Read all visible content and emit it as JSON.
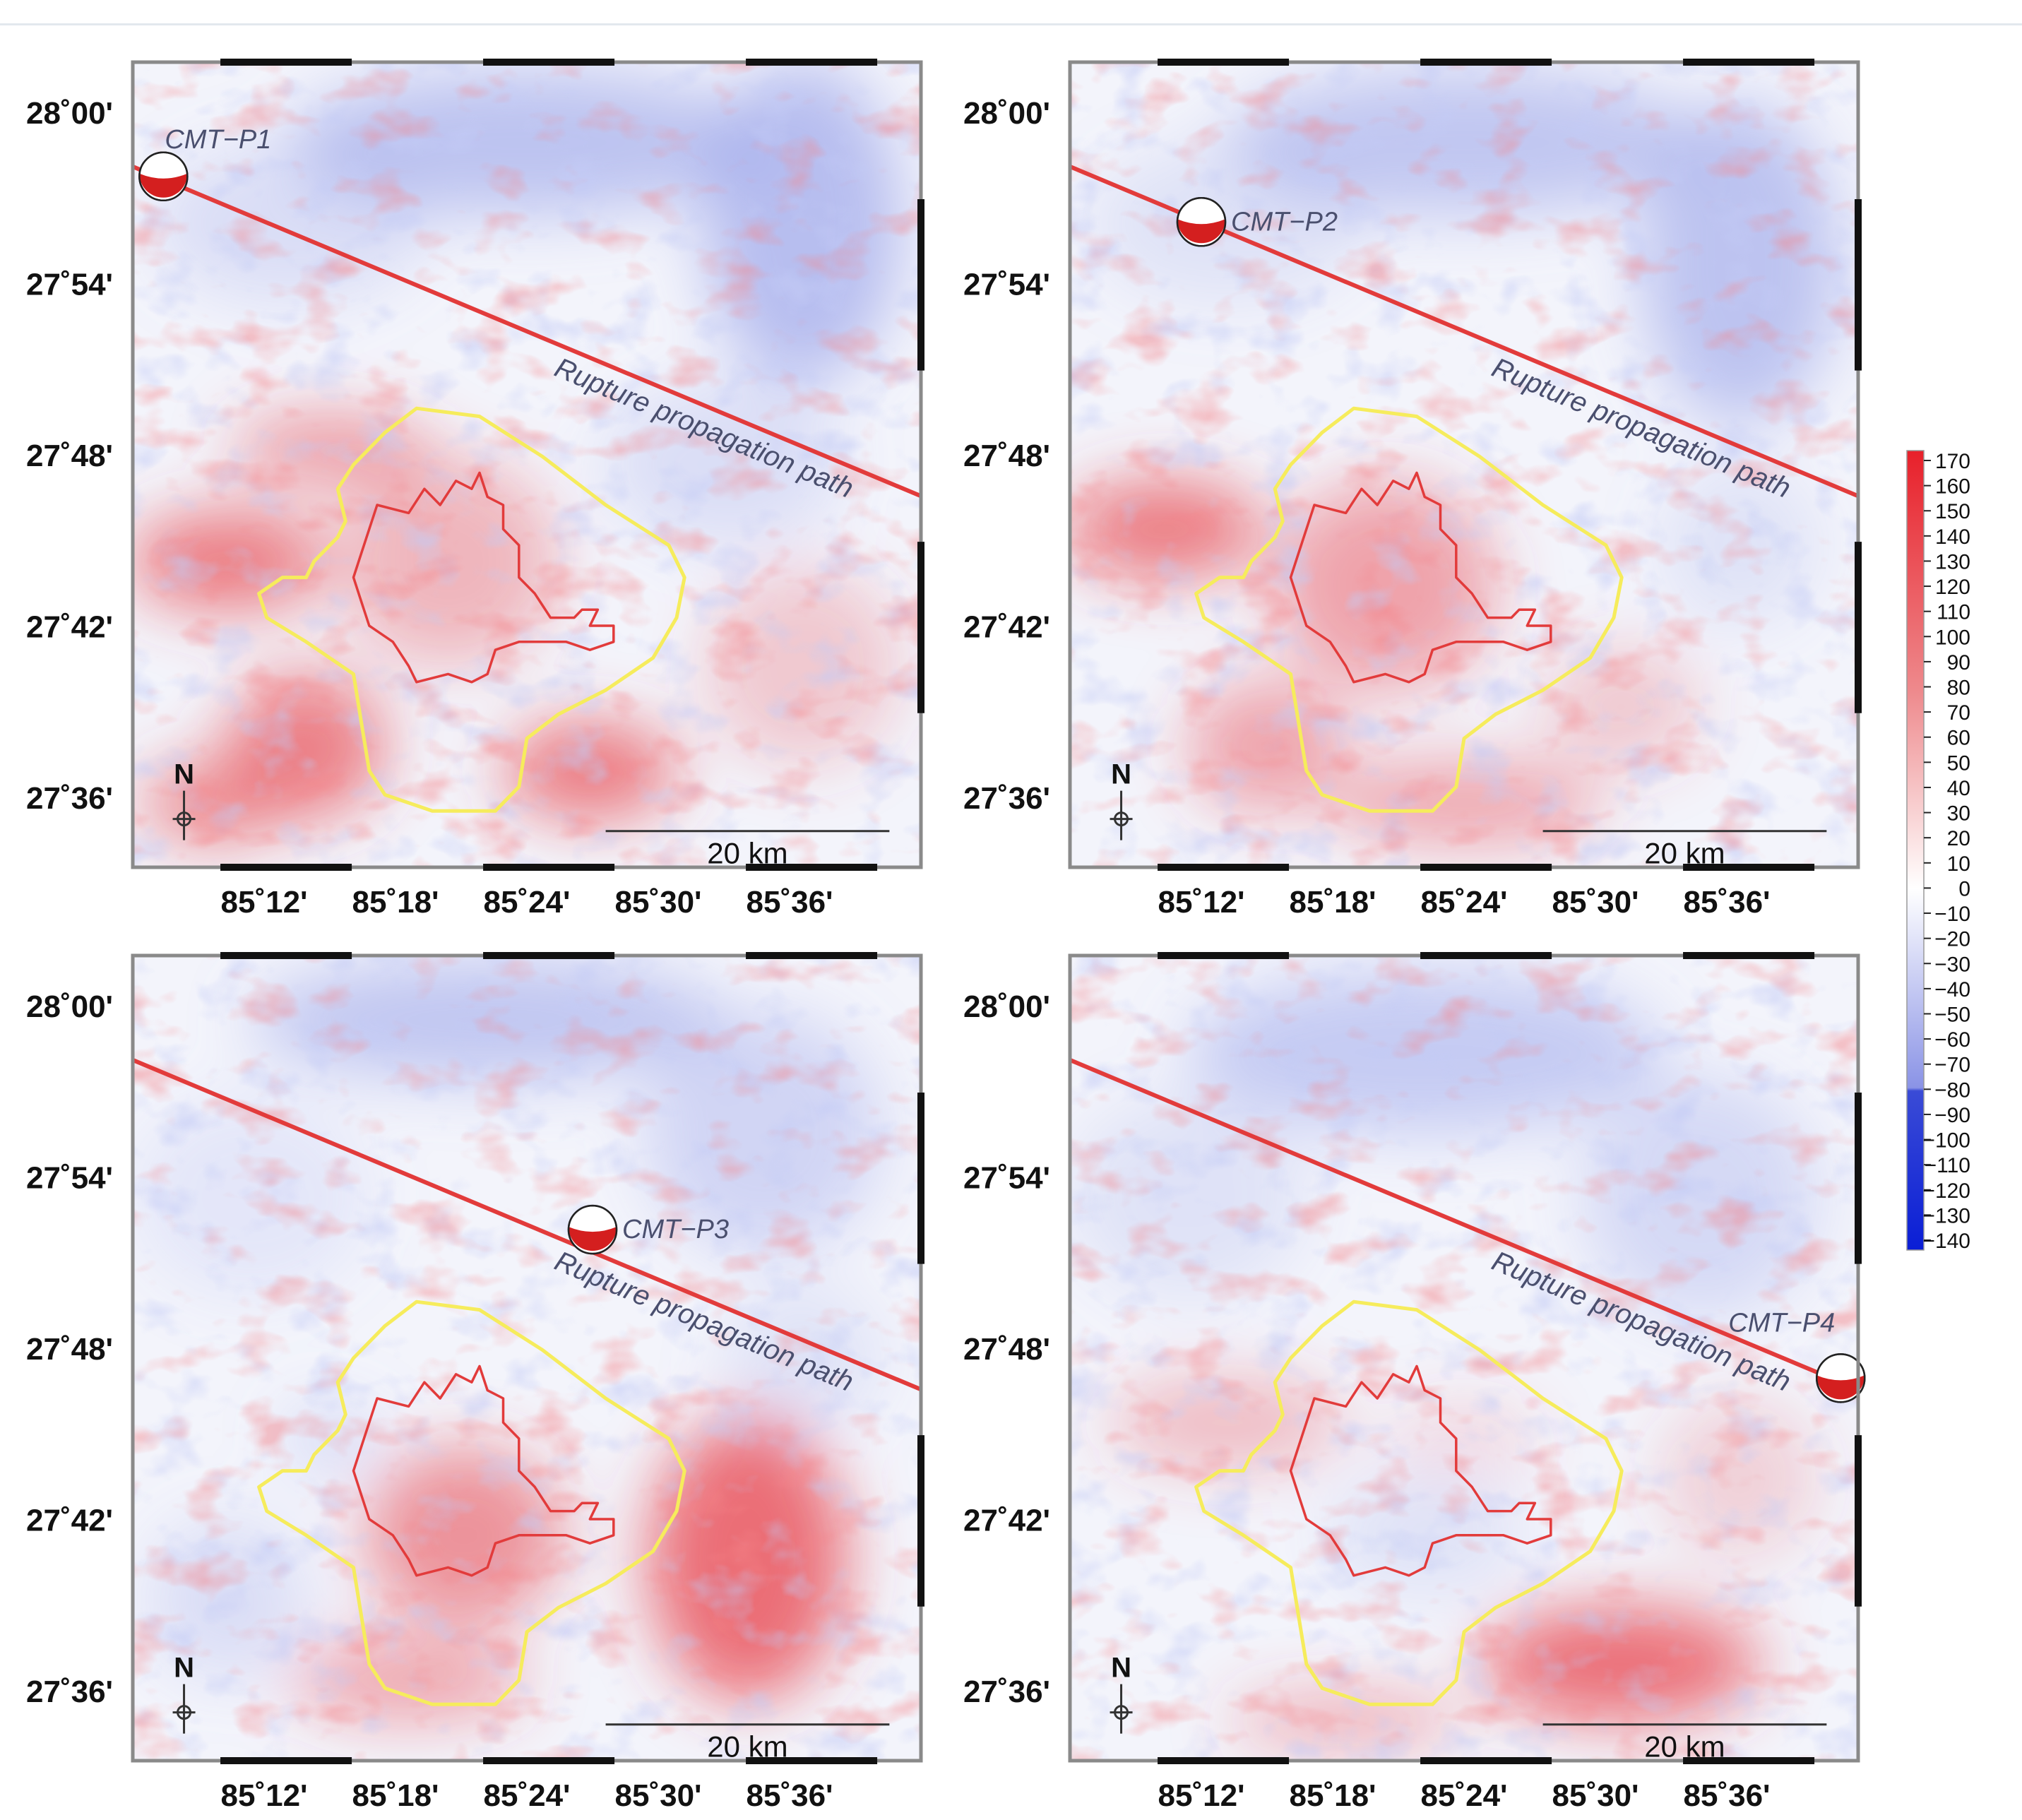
{
  "panels": [
    {
      "id": "p1",
      "cmt_label": "CMT−P1",
      "path_label": "Rupture propagation path",
      "scale_label": "20 km",
      "north_label": "N",
      "fault": {
        "start": [
          85.0867,
          27.9733
        ],
        "end": [
          85.7,
          27.7767
        ]
      },
      "cmt_position": [
        85.1233,
        27.9633
      ],
      "cmt_label_anchor": "right-above"
    },
    {
      "id": "p2",
      "cmt_label": "CMT−P2",
      "path_label": "Rupture propagation path",
      "scale_label": "20 km",
      "north_label": "N",
      "fault": {
        "start": [
          85.0867,
          27.9733
        ],
        "end": [
          85.7,
          27.7767
        ]
      },
      "cmt_position": [
        85.2,
        27.9367
      ],
      "cmt_label_anchor": "right"
    },
    {
      "id": "p3",
      "cmt_label": "CMT−P3",
      "path_label": "Rupture propagation path",
      "scale_label": "20 km",
      "north_label": "N",
      "fault": {
        "start": [
          85.0867,
          27.9733
        ],
        "end": [
          85.7,
          27.7767
        ]
      },
      "cmt_position": [
        85.45,
        27.87
      ],
      "cmt_label_anchor": "right"
    },
    {
      "id": "p4",
      "cmt_label": "CMT−P4",
      "path_label": "Rupture propagation path",
      "scale_label": "20 km",
      "north_label": "N",
      "fault": {
        "start": [
          85.0867,
          27.9733
        ],
        "end": [
          85.7,
          27.7767
        ]
      },
      "cmt_position": [
        85.6867,
        27.7833
      ],
      "cmt_label_anchor": "above-left"
    }
  ],
  "axes": {
    "lon_ticks": [
      "85˚12'",
      "85˚18'",
      "85˚24'",
      "85˚30'",
      "85˚36'"
    ],
    "lon_values": [
      85.2,
      85.3,
      85.4,
      85.5,
      85.6
    ],
    "lat_ticks": [
      "28˚00'",
      "27˚54'",
      "27˚48'",
      "27˚42'",
      "27˚36'"
    ],
    "lat_values": [
      28.0,
      27.9,
      27.8,
      27.7,
      27.6
    ],
    "lon_range": [
      85.1,
      85.7
    ],
    "lat_range": [
      27.56,
      28.03
    ]
  },
  "colorbar": {
    "tick_labels": [
      "170",
      "160",
      "150",
      "140",
      "130",
      "120",
      "110",
      "100",
      "90",
      "80",
      "70",
      "60",
      "50",
      "40",
      "30",
      "20",
      "10",
      "0",
      "−10",
      "−20",
      "−30",
      "−40",
      "−50",
      "−60",
      "−70",
      "−80",
      "−90",
      "−100",
      "−110",
      "−120",
      "−130",
      "−140"
    ],
    "range": [
      -140,
      170
    ],
    "colors": {
      "max": "#e8202a",
      "zero": "#ffffff",
      "min": "#0a1ed6"
    }
  },
  "colors": {
    "rupture_line": "#e23b3b",
    "outer_outline": "#f6ec5c",
    "inner_outline": "#e23b3b",
    "path_label": "#4a4f6e",
    "beachball_red": "#d41f1f"
  }
}
